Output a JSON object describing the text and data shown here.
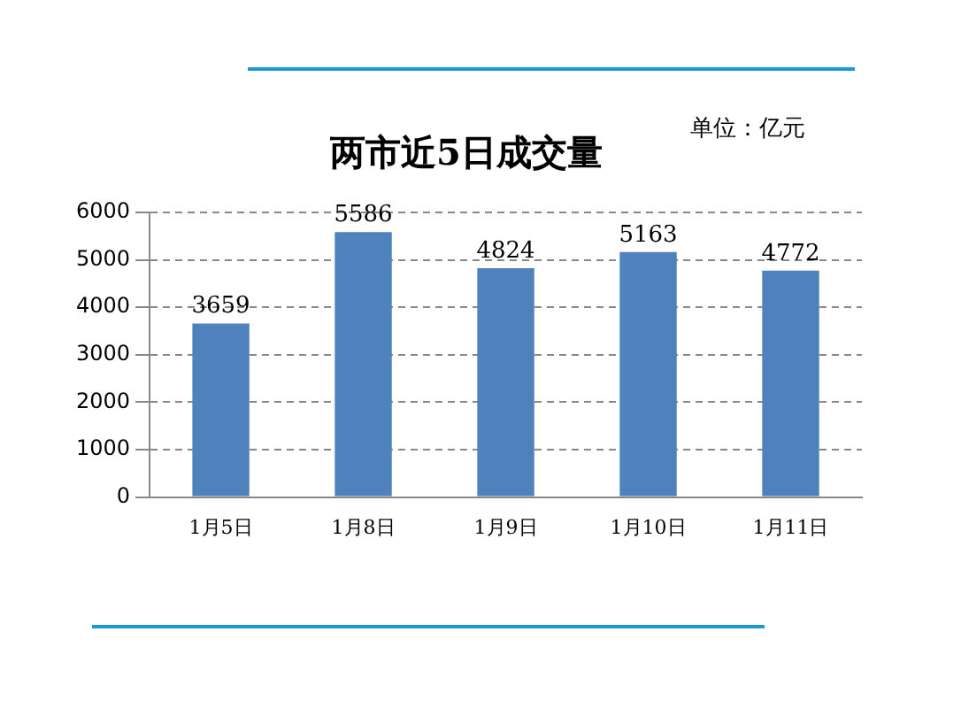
{
  "chart_data": {
    "type": "bar",
    "title": "两市近5日成交量",
    "annotations": [
      "单位：亿元"
    ],
    "categories": [
      "1月5日",
      "1月8日",
      "1月9日",
      "1月10日",
      "1月11日"
    ],
    "values": [
      3659,
      5586,
      4824,
      5163,
      4772
    ],
    "color": "#4f81bd",
    "ylim": [
      0,
      6000
    ],
    "yticks": [
      0,
      1000,
      2000,
      3000,
      4000,
      5000,
      6000
    ],
    "grid": "y",
    "data_labels": true
  }
}
